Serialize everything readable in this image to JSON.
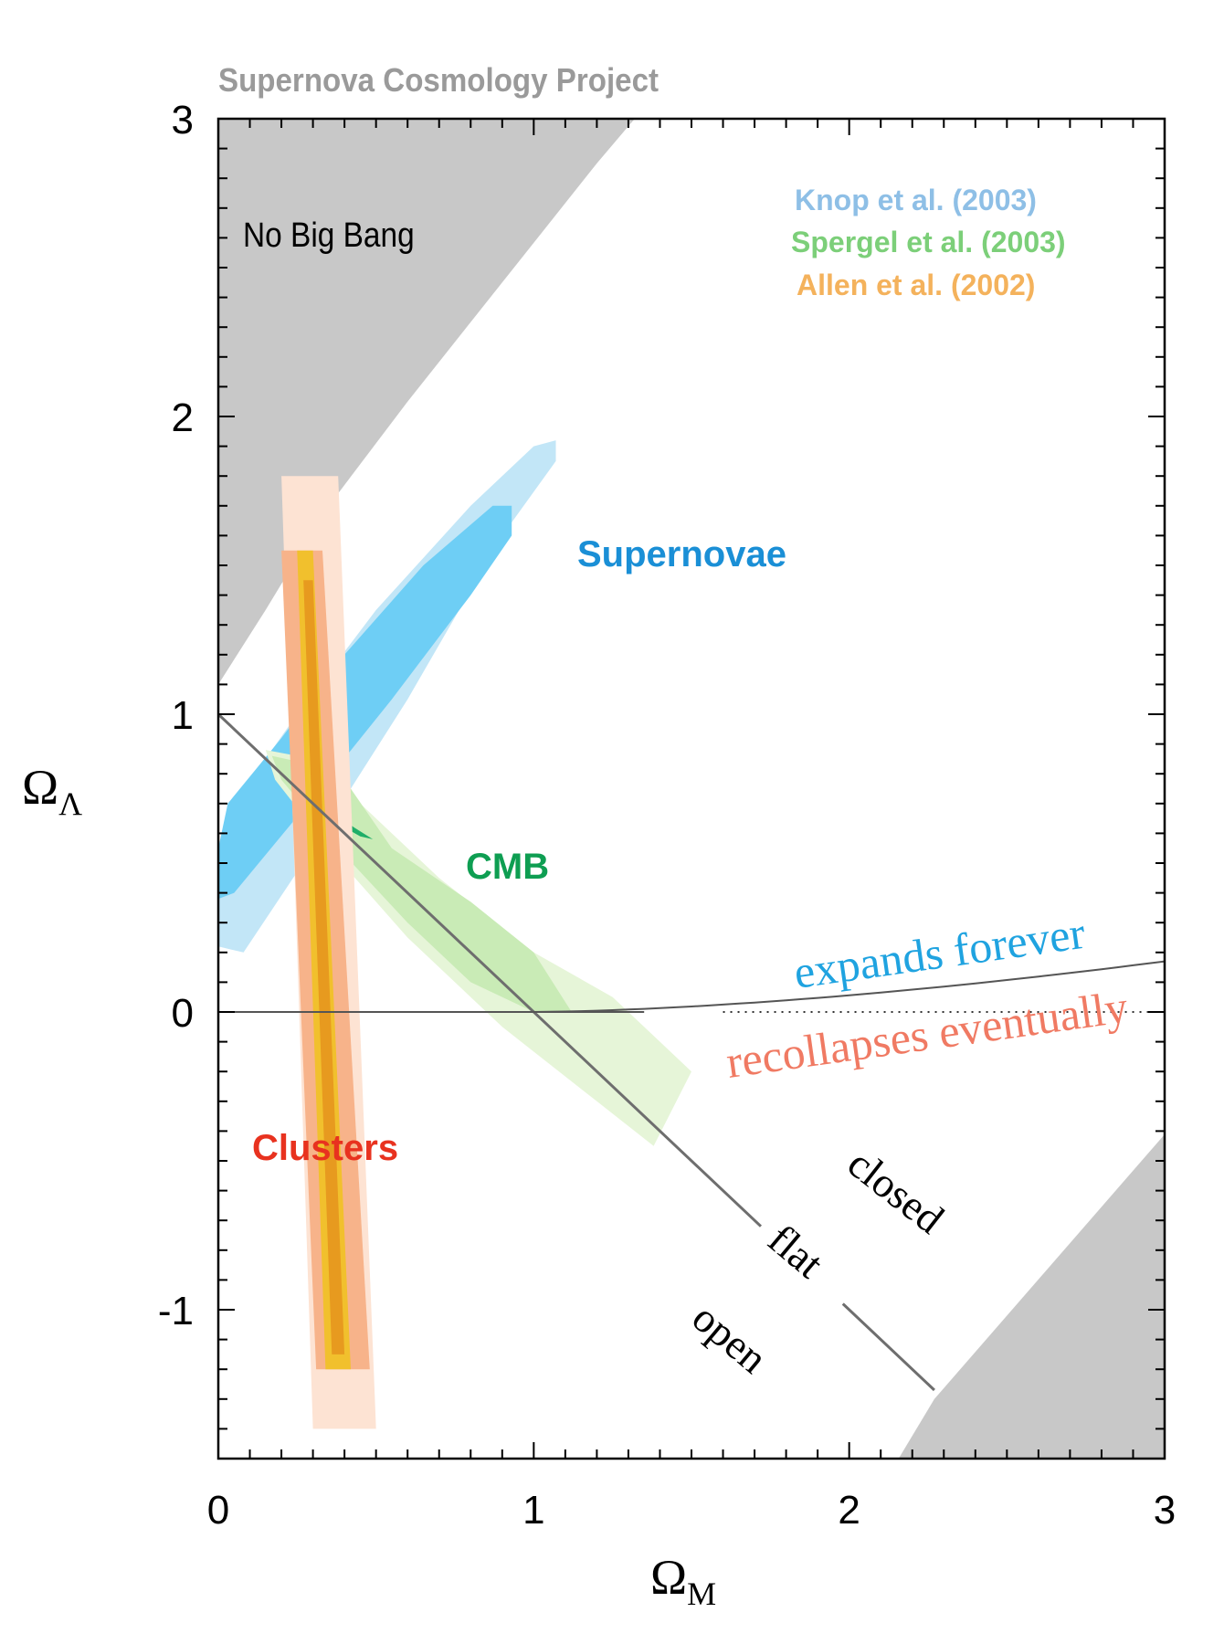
{
  "chart_data": {
    "type": "contour",
    "title": "Supernova Cosmology Project",
    "xlabel": "Ω",
    "xlabel_sub": "M",
    "ylabel": "Ω",
    "ylabel_sub": "Λ",
    "xlim": [
      0,
      3
    ],
    "ylim": [
      -1.5,
      3
    ],
    "x_ticks": [
      {
        "value": 0,
        "label": "0"
      },
      {
        "value": 1,
        "label": "1"
      },
      {
        "value": 2,
        "label": "2"
      },
      {
        "value": 3,
        "label": "3"
      }
    ],
    "y_ticks": [
      {
        "value": 3,
        "label": "3"
      },
      {
        "value": 2,
        "label": "2"
      },
      {
        "value": 1,
        "label": "1"
      },
      {
        "value": 0,
        "label": "0"
      },
      {
        "value": -1,
        "label": "-1"
      }
    ],
    "legend": {
      "placement": "top-right",
      "entries": [
        {
          "label": "Knop et al. (2003)",
          "color": "#8ebfe6"
        },
        {
          "label": "Spergel et al.  (2003)",
          "color": "#7ccf79"
        },
        {
          "label": "Allen et al.  (2002)",
          "color": "#f4b25c"
        }
      ]
    },
    "regions": [
      {
        "name": "Supernovae",
        "label": "Supernovae",
        "label_color": "#1a8fd6",
        "center": [
          0.55,
          1.05
        ],
        "contours": [
          {
            "level": "outer",
            "color": "#c2e6f7",
            "polygon": [
              [
                0.08,
                0.2
              ],
              [
                0.3,
                0.55
              ],
              [
                0.6,
                1.05
              ],
              [
                0.9,
                1.6
              ],
              [
                1.07,
                1.85
              ],
              [
                1.07,
                1.92
              ],
              [
                1.0,
                1.9
              ],
              [
                0.8,
                1.7
              ],
              [
                0.5,
                1.35
              ],
              [
                0.25,
                1.0
              ],
              [
                0.05,
                0.7
              ],
              [
                0.0,
                0.5
              ],
              [
                0.0,
                0.22
              ]
            ]
          },
          {
            "level": "inner",
            "color": "#6ecef5",
            "polygon": [
              [
                0.05,
                0.4
              ],
              [
                0.3,
                0.72
              ],
              [
                0.55,
                1.05
              ],
              [
                0.8,
                1.4
              ],
              [
                0.93,
                1.6
              ],
              [
                0.93,
                1.7
              ],
              [
                0.87,
                1.7
              ],
              [
                0.65,
                1.5
              ],
              [
                0.4,
                1.2
              ],
              [
                0.2,
                0.92
              ],
              [
                0.03,
                0.7
              ],
              [
                0.0,
                0.55
              ],
              [
                0.0,
                0.38
              ]
            ]
          }
        ]
      },
      {
        "name": "CMB",
        "label": "CMB",
        "label_color": "#0e9e52",
        "center": [
          0.45,
          0.6
        ],
        "contours": [
          {
            "level": "outer",
            "color": "#e6f5d8",
            "polygon": [
              [
                0.15,
                0.88
              ],
              [
                0.3,
                0.85
              ],
              [
                0.45,
                0.7
              ],
              [
                0.7,
                0.45
              ],
              [
                1.0,
                0.2
              ],
              [
                1.25,
                0.05
              ],
              [
                1.5,
                -0.2
              ],
              [
                1.38,
                -0.45
              ],
              [
                1.2,
                -0.3
              ],
              [
                0.9,
                -0.05
              ],
              [
                0.6,
                0.25
              ],
              [
                0.35,
                0.55
              ],
              [
                0.18,
                0.78
              ]
            ]
          },
          {
            "level": "mid",
            "color": "#c9ebb6",
            "polygon": [
              [
                0.17,
                0.86
              ],
              [
                0.3,
                0.83
              ],
              [
                0.42,
                0.75
              ],
              [
                0.55,
                0.55
              ],
              [
                0.8,
                0.37
              ],
              [
                1.0,
                0.2
              ],
              [
                1.12,
                0.0
              ],
              [
                1.0,
                0.0
              ],
              [
                0.8,
                0.1
              ],
              [
                0.6,
                0.3
              ],
              [
                0.38,
                0.55
              ],
              [
                0.2,
                0.78
              ]
            ]
          },
          {
            "level": "inner",
            "color": "#1fae68",
            "polygon": [
              [
                0.23,
                0.77
              ],
              [
                0.33,
                0.7
              ],
              [
                0.43,
                0.62
              ],
              [
                0.49,
                0.58
              ],
              [
                0.45,
                0.59
              ],
              [
                0.35,
                0.65
              ],
              [
                0.25,
                0.73
              ]
            ]
          }
        ]
      },
      {
        "name": "Clusters",
        "label": "Clusters",
        "label_color": "#e8321f",
        "center": [
          0.35,
          0.0
        ],
        "contours": [
          {
            "level": "outer",
            "color": "#fde3d3",
            "polygon": [
              [
                0.2,
                1.8
              ],
              [
                0.38,
                1.8
              ],
              [
                0.5,
                -1.4
              ],
              [
                0.3,
                -1.4
              ]
            ]
          },
          {
            "level": "mid",
            "color": "#f7b38a",
            "polygon": [
              [
                0.2,
                1.55
              ],
              [
                0.33,
                1.55
              ],
              [
                0.48,
                -1.2
              ],
              [
                0.31,
                -1.2
              ]
            ]
          },
          {
            "level": "inner",
            "color": "#f1c02d",
            "polygon": [
              [
                0.25,
                1.55
              ],
              [
                0.3,
                1.55
              ],
              [
                0.42,
                -1.2
              ],
              [
                0.34,
                -1.2
              ]
            ]
          },
          {
            "level": "core",
            "color": "#e79a1f",
            "polygon": [
              [
                0.27,
                1.45
              ],
              [
                0.3,
                1.45
              ],
              [
                0.4,
                -1.15
              ],
              [
                0.36,
                -1.15
              ]
            ]
          }
        ]
      }
    ],
    "exclusions": [
      {
        "label": "No Big Bang",
        "color": "#c8c8c8"
      },
      {
        "label": "",
        "color": "#c8c8c8"
      }
    ],
    "lines": [
      {
        "name": "flat",
        "label": "flat",
        "color": "#6e6e6e"
      },
      {
        "name": "open",
        "label": "open",
        "color": "#000000"
      },
      {
        "name": "closed",
        "label": "closed",
        "color": "#000000"
      },
      {
        "name": "expands-forever",
        "label": "expands forever",
        "color": "#1fa3e0"
      },
      {
        "name": "recollapses-eventually",
        "label": "recollapses eventually",
        "color": "#f07a63"
      }
    ]
  }
}
